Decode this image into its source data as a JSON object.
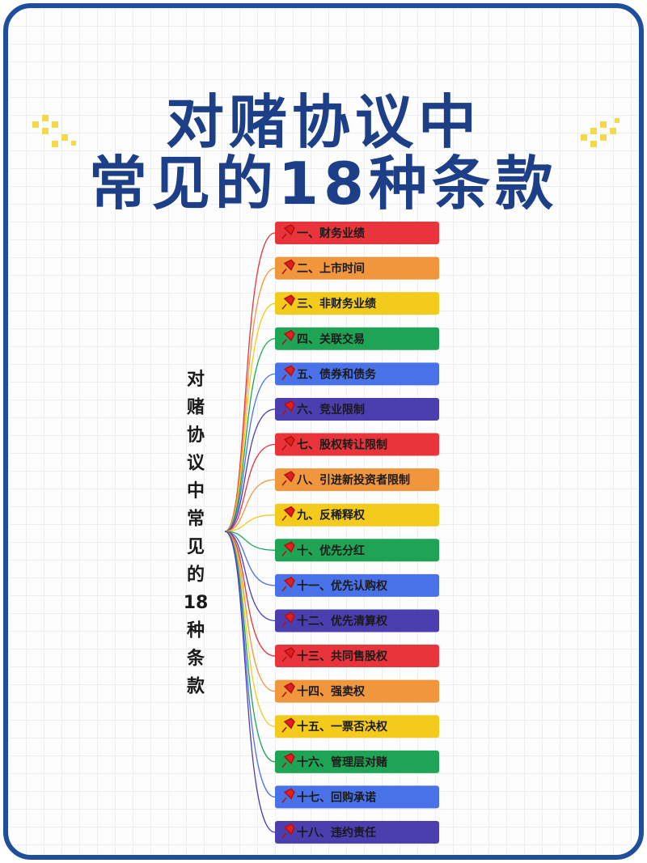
{
  "title": {
    "line1": "对赌协议中",
    "line2": "常见的18种条款"
  },
  "center_label": {
    "lines": [
      "对",
      "赌",
      "协",
      "议",
      "中",
      "常",
      "见",
      "的",
      "18",
      "种",
      "条",
      "款"
    ]
  },
  "items": [
    {
      "label": "一、财务业绩",
      "color": "#e8343a"
    },
    {
      "label": "二、上市时间",
      "color": "#f0963c"
    },
    {
      "label": "三、非财务业绩",
      "color": "#f2cb1d"
    },
    {
      "label": "四、关联交易",
      "color": "#1fa456"
    },
    {
      "label": "五、债券和债务",
      "color": "#4a72e8"
    },
    {
      "label": "六、竞业限制",
      "color": "#4b3fb0"
    },
    {
      "label": "七、股权转让限制",
      "color": "#e8343a"
    },
    {
      "label": "八、引进新投资者限制",
      "color": "#f0963c"
    },
    {
      "label": "九、反稀释权",
      "color": "#f2cb1d"
    },
    {
      "label": "十、优先分红",
      "color": "#1fa456"
    },
    {
      "label": "十一、优先认购权",
      "color": "#4a72e8"
    },
    {
      "label": "十二、优先清算权",
      "color": "#4b3fb0"
    },
    {
      "label": "十三、共同售股权",
      "color": "#e8343a"
    },
    {
      "label": "十四、强卖权",
      "color": "#f0963c"
    },
    {
      "label": "十五、一票否决权",
      "color": "#f2cb1d"
    },
    {
      "label": "十六、管理层对赌",
      "color": "#1fa456"
    },
    {
      "label": "十七、回购承诺",
      "color": "#4a72e8"
    },
    {
      "label": "十八、违约责任",
      "color": "#4b3fb0"
    }
  ]
}
